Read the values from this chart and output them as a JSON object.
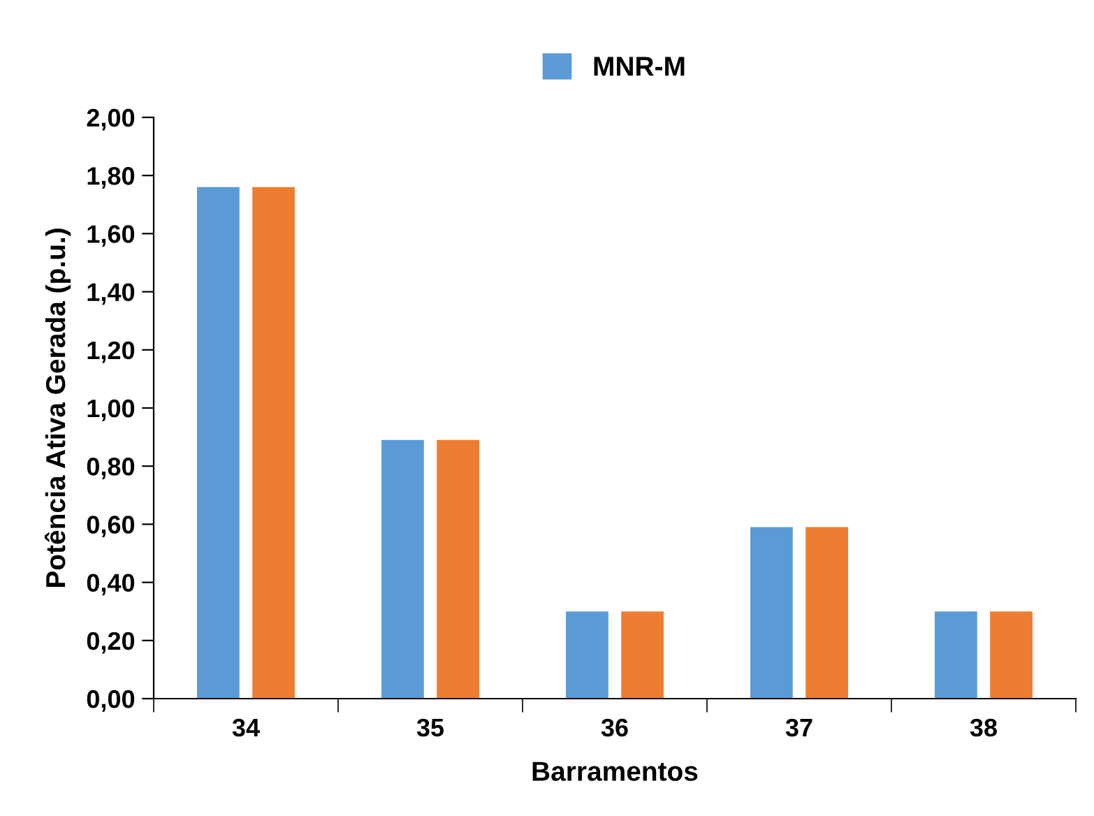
{
  "chart_data": {
    "type": "bar",
    "xlabel": "Barramentos",
    "ylabel": "Potência Ativa Gerada (p.u.)",
    "categories": [
      "34",
      "35",
      "36",
      "37",
      "38"
    ],
    "series": [
      {
        "name": "MNR-M",
        "color": "#5b9bd5",
        "values": [
          1.76,
          0.89,
          0.3,
          0.59,
          0.3
        ]
      },
      {
        "color": "#ed7d31",
        "values": [
          1.76,
          0.89,
          0.3,
          0.59,
          0.3
        ]
      }
    ],
    "ylim": [
      0,
      2.0
    ],
    "yticks": [
      {
        "value": 0,
        "label": "0,00"
      },
      {
        "value": 0.2,
        "label": "0,20"
      },
      {
        "value": 0.4,
        "label": "0,40"
      },
      {
        "value": 0.6,
        "label": "0,60"
      },
      {
        "value": 0.8,
        "label": "0,80"
      },
      {
        "value": 1.0,
        "label": "1,00"
      },
      {
        "value": 1.2,
        "label": "1,20"
      },
      {
        "value": 1.4,
        "label": "1,40"
      },
      {
        "value": 1.6,
        "label": "1,60"
      },
      {
        "value": 1.8,
        "label": "1,80"
      },
      {
        "value": 2.0,
        "label": "2,00"
      }
    ],
    "grid": false,
    "legend": "top"
  }
}
